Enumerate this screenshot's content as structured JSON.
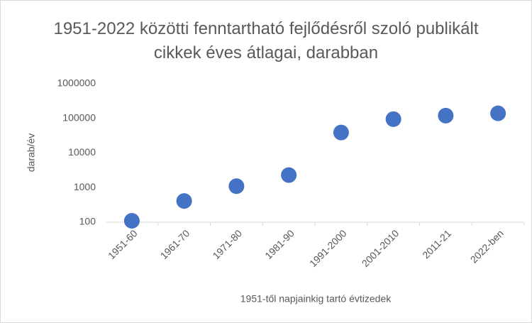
{
  "chart_data": {
    "type": "scatter",
    "title": "1951-2022 közötti fenntartható fejlődésről szoló publikált cikkek éves átlagai, darabban",
    "xlabel": "1951-től napjainkig tartó évtizedek",
    "ylabel": "darab/év",
    "categories": [
      "1951-60",
      "1961-70",
      "1971-80",
      "1981-90",
      "1991-2000",
      "2001-2010",
      "2011-21",
      "2022-ben"
    ],
    "values": [
      110,
      410,
      1100,
      2300,
      39000,
      95000,
      120000,
      140000
    ],
    "color": "#4472c4",
    "ylog": true,
    "ylim": [
      100,
      1000000
    ],
    "yticks": [
      100,
      1000,
      10000,
      100000,
      1000000
    ],
    "grid": false
  }
}
